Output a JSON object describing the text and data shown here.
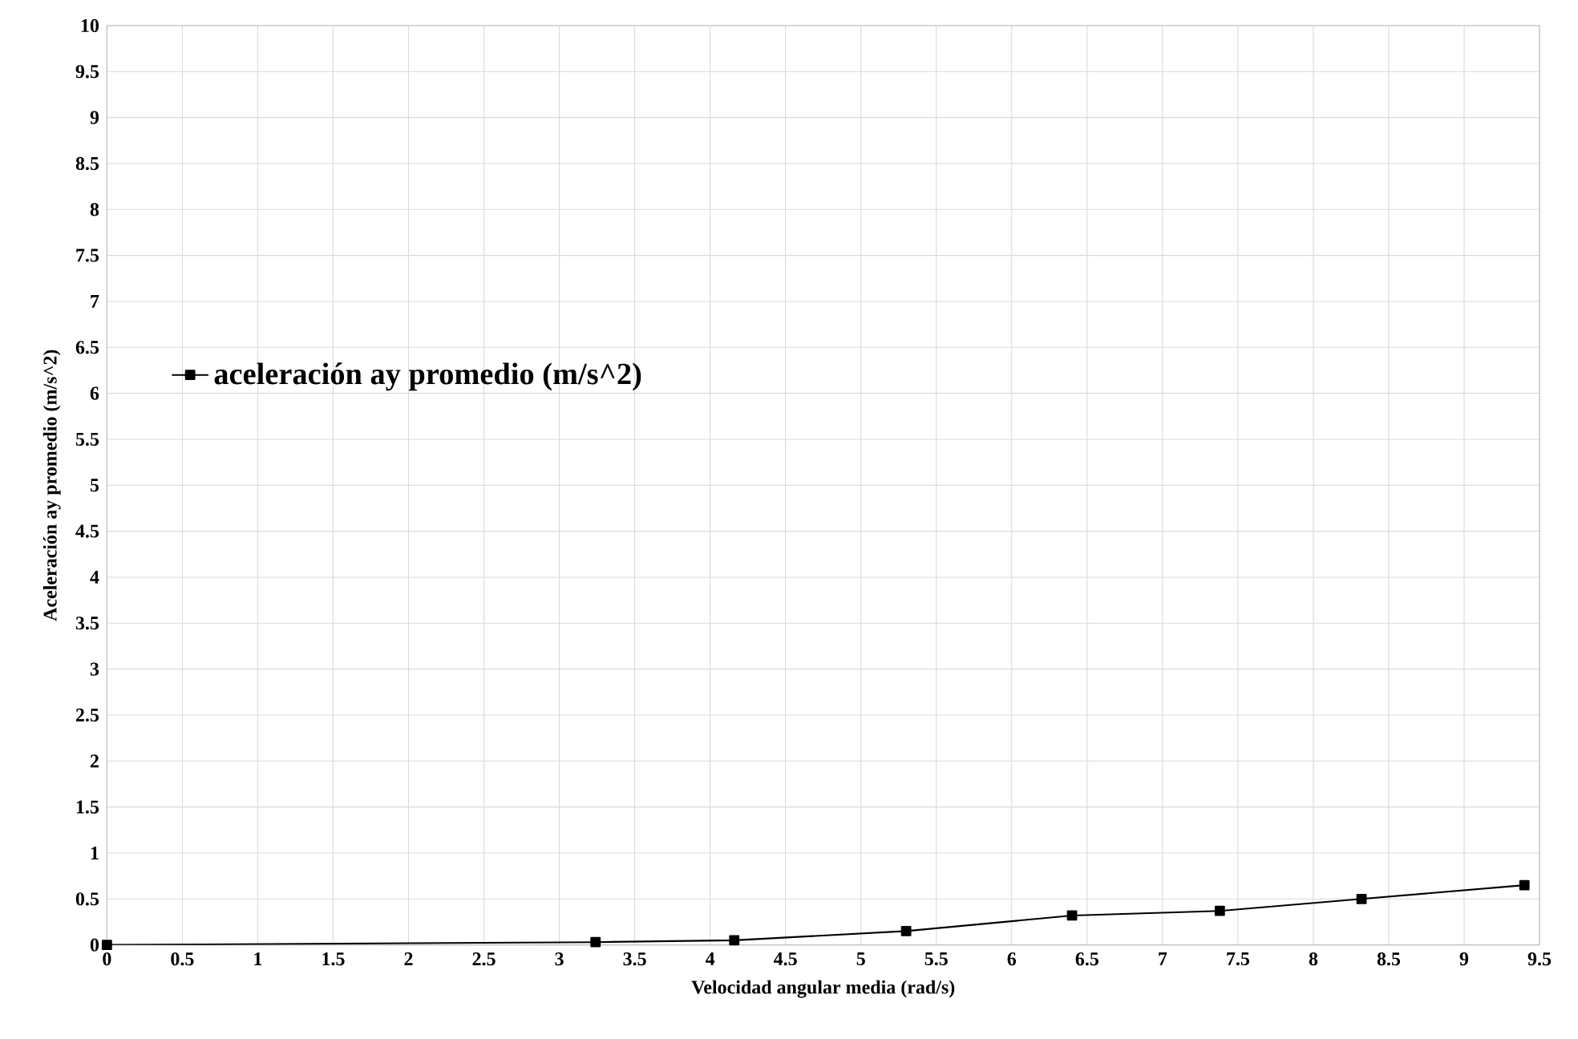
{
  "chart_data": {
    "type": "line",
    "xlabel": "Velocidad angular media (rad/s)",
    "ylabel": "Aceleración ay promedio (m/s^2)",
    "x": [
      0,
      3.24,
      4.16,
      5.3,
      6.4,
      7.38,
      8.32,
      9.4
    ],
    "series": [
      {
        "name": "aceleración ay promedio (m/s^2)",
        "color": "#000000",
        "values": [
          0,
          0.03,
          0.05,
          0.15,
          0.32,
          0.37,
          0.5,
          0.65
        ]
      }
    ],
    "xlim": [
      0,
      9.5
    ],
    "ylim": [
      0,
      10
    ],
    "xticks": [
      0,
      0.5,
      1,
      1.5,
      2,
      2.5,
      3,
      3.5,
      4,
      4.5,
      5,
      5.5,
      6,
      6.5,
      7,
      7.5,
      8,
      8.5,
      9,
      9.5
    ],
    "yticks": [
      0,
      0.5,
      1,
      1.5,
      2,
      2.5,
      3,
      3.5,
      4,
      4.5,
      5,
      5.5,
      6,
      6.5,
      7,
      7.5,
      8,
      8.5,
      9,
      9.5,
      10
    ],
    "grid": true,
    "legend": "left",
    "marker": "square",
    "line_style": "solid"
  }
}
